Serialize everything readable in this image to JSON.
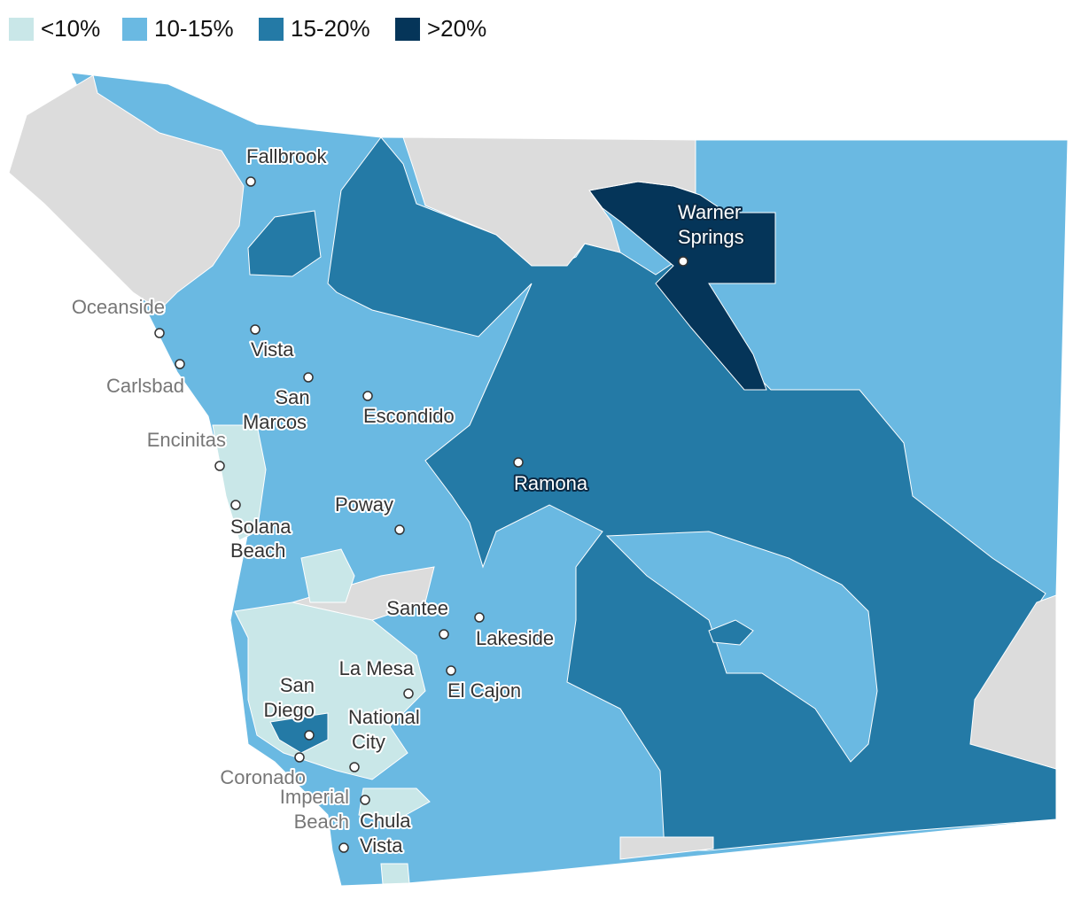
{
  "legend": [
    {
      "label": "<10%",
      "color": "#c9e7e8"
    },
    {
      "label": "10-15%",
      "color": "#6ab9e2"
    },
    {
      "label": "15-20%",
      "color": "#247aa6"
    },
    {
      "label": ">20%",
      "color": "#053559"
    }
  ],
  "places": [
    {
      "lines": [
        "Fallbrook"
      ]
    },
    {
      "lines": [
        "Oceanside"
      ]
    },
    {
      "lines": [
        "Vista"
      ]
    },
    {
      "lines": [
        "Carlsbad"
      ]
    },
    {
      "lines": [
        "San",
        "Marcos"
      ]
    },
    {
      "lines": [
        "Escondido"
      ]
    },
    {
      "lines": [
        "Encinitas"
      ]
    },
    {
      "lines": [
        "Ramona"
      ]
    },
    {
      "lines": [
        "Poway"
      ]
    },
    {
      "lines": [
        "Solana",
        "Beach"
      ]
    },
    {
      "lines": [
        "Santee"
      ]
    },
    {
      "lines": [
        "Lakeside"
      ]
    },
    {
      "lines": [
        "La Mesa"
      ]
    },
    {
      "lines": [
        "El Cajon"
      ]
    },
    {
      "lines": [
        "San",
        "Diego"
      ]
    },
    {
      "lines": [
        "National",
        "City"
      ]
    },
    {
      "lines": [
        "Coronado"
      ]
    },
    {
      "lines": [
        "Imperial",
        "Beach"
      ]
    },
    {
      "lines": [
        "Chula",
        "Vista"
      ]
    },
    {
      "lines": [
        "Warner",
        "Springs"
      ]
    }
  ]
}
